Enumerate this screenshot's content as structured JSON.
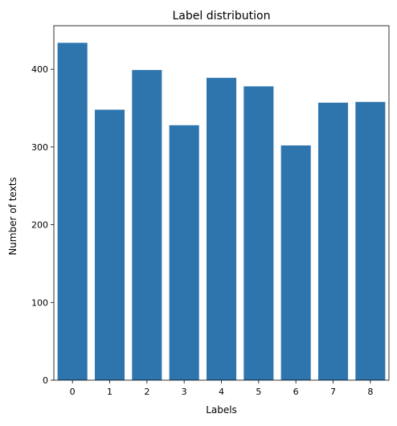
{
  "chart_data": {
    "type": "bar",
    "title": "Label distribution",
    "xlabel": "Labels",
    "ylabel": "Number of texts",
    "categories": [
      "0",
      "1",
      "2",
      "3",
      "4",
      "5",
      "6",
      "7",
      "8"
    ],
    "values": [
      434,
      348,
      399,
      328,
      389,
      378,
      302,
      357,
      358
    ],
    "ylim": [
      0,
      456
    ],
    "yticks": [
      0,
      100,
      200,
      300,
      400
    ],
    "grid": false,
    "legend": "none",
    "bar_color": "#2e75ad"
  }
}
